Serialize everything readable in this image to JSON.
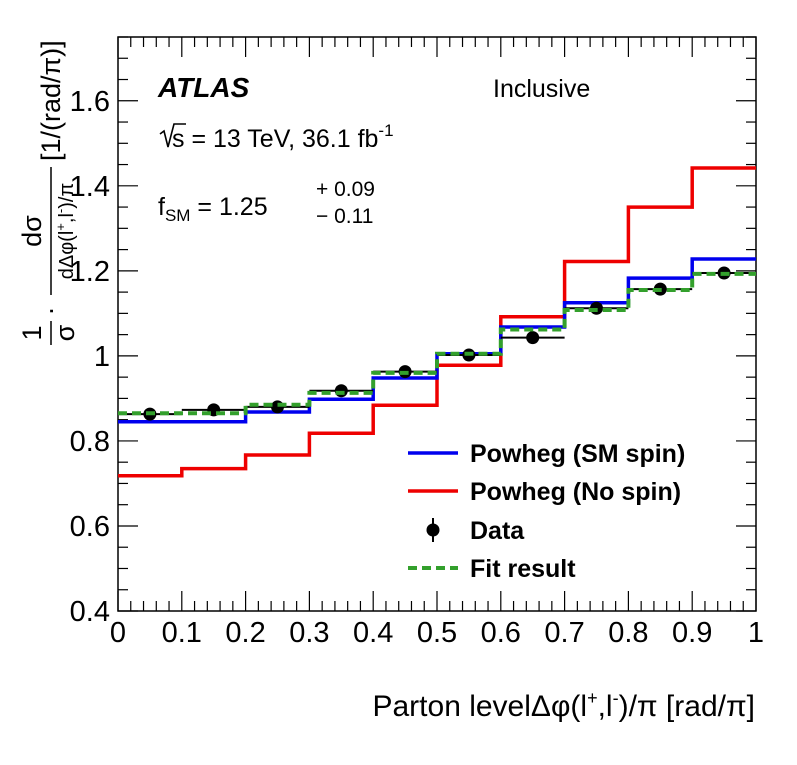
{
  "chart_data": {
    "type": "line",
    "title": "",
    "xlabel": "Parton levelΔφ(l⁺,l⁻)/π [rad/π]",
    "ylabel": "1/σ · dσ/dΔφ(l⁺,l⁻)/π [1/(rad/π)]",
    "xlim": [
      0,
      1
    ],
    "ylim": [
      0.4,
      1.75
    ],
    "x_tick_labels": [
      "0",
      "0.1",
      "0.2",
      "0.3",
      "0.4",
      "0.5",
      "0.6",
      "0.7",
      "0.8",
      "0.9",
      "1"
    ],
    "y_tick_labels": [
      "0.4",
      "0.6",
      "0.8",
      "1",
      "1.2",
      "1.4",
      "1.6"
    ],
    "bin_edges": [
      0,
      0.1,
      0.2,
      0.3,
      0.4,
      0.5,
      0.6,
      0.7,
      0.8,
      0.9,
      1.0
    ],
    "series": [
      {
        "name": "Powheg (SM spin)",
        "style": "step",
        "color": "#0000ee",
        "values": [
          0.845,
          0.845,
          0.868,
          0.898,
          0.948,
          1.005,
          1.068,
          1.125,
          1.183,
          1.228
        ]
      },
      {
        "name": "Powheg (No spin)",
        "style": "step",
        "color": "#ee0000",
        "values": [
          0.718,
          0.735,
          0.767,
          0.818,
          0.884,
          0.978,
          1.092,
          1.222,
          1.35,
          1.442
        ]
      },
      {
        "name": "Data",
        "style": "points",
        "color": "#000000",
        "x": [
          0.05,
          0.15,
          0.25,
          0.35,
          0.45,
          0.55,
          0.65,
          0.75,
          0.85,
          0.95
        ],
        "values": [
          0.863,
          0.873,
          0.88,
          0.918,
          0.963,
          1.002,
          1.043,
          1.112,
          1.157,
          1.195
        ]
      },
      {
        "name": "Fit result",
        "style": "dashed-step",
        "color": "#33a02c",
        "values": [
          0.865,
          0.865,
          0.885,
          0.913,
          0.96,
          1.005,
          1.062,
          1.108,
          1.155,
          1.193
        ]
      }
    ],
    "annotations": {
      "experiment": "ATLAS",
      "region": "Inclusive",
      "energy_prefix": "s = 13 TeV, 36.1 fb",
      "energy_sup": "-1",
      "fsm_label": "f",
      "fsm_sub": "SM",
      "fsm_value": " = 1.25",
      "fsm_err_up": "+ 0.09",
      "fsm_err_down": "− 0.11"
    },
    "xlabel_parts": {
      "prefix": "Parton levelΔφ(l",
      "sup1": "+",
      "mid": ",l",
      "sup2": "-",
      "suffix": ")/π [rad/π]"
    },
    "ylabel_parts": {
      "one": "1",
      "sigma": "σ",
      "dot": "·",
      "num": "dσ",
      "den_a": "dΔφ(l",
      "den_sup1": "+",
      "den_mid": ",l",
      "den_sup2": "-",
      "den_b": ")/π",
      "unit": "[1/(rad/π)]"
    },
    "legend_position": "bottom-right"
  }
}
